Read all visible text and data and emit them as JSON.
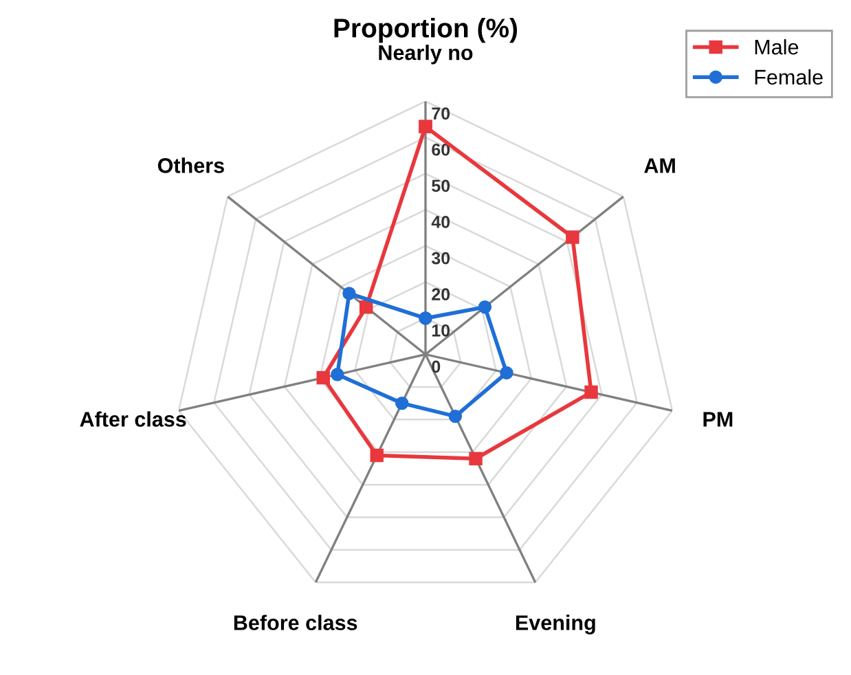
{
  "chart_data": {
    "type": "radar",
    "title": "Proportion (%)",
    "categories": [
      "Nearly no",
      "AM",
      "PM",
      "Evening",
      "Before class",
      "After class",
      "Others"
    ],
    "series": [
      {
        "name": "Male",
        "color": "#e8383d",
        "marker": "square",
        "values": [
          63,
          52,
          47,
          32,
          31,
          29,
          21
        ]
      },
      {
        "name": "Female",
        "color": "#1f6fd6",
        "marker": "circle",
        "values": [
          10,
          21,
          23,
          19,
          15,
          25,
          27
        ]
      }
    ],
    "ylim": [
      0,
      70
    ],
    "yticks": [
      0,
      10,
      20,
      30,
      40,
      50,
      60,
      70
    ],
    "grid": true,
    "legend": "top right",
    "line_style": "solid"
  }
}
